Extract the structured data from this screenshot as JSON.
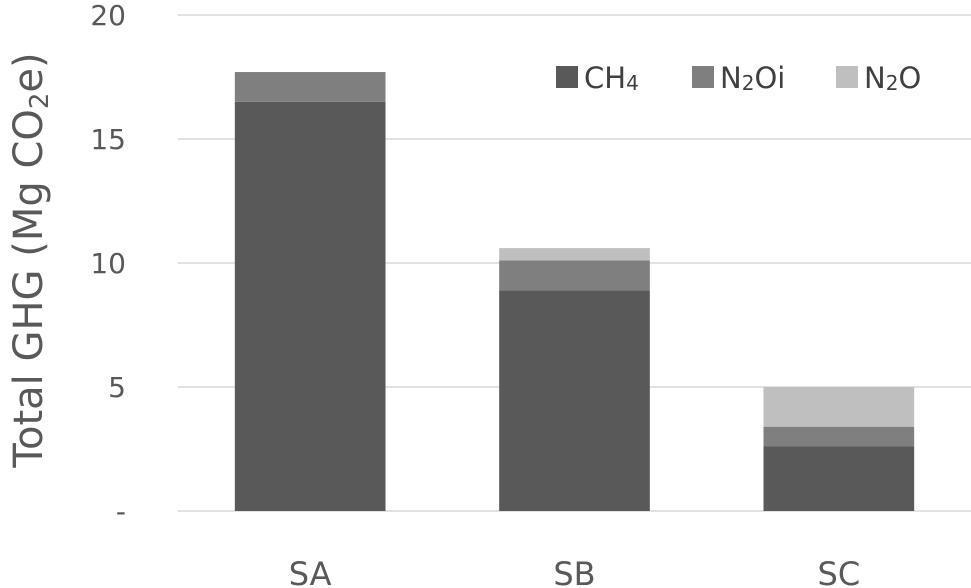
{
  "chart_data": {
    "type": "bar",
    "stacked": true,
    "categories": [
      "SA",
      "SB",
      "SC"
    ],
    "series": [
      {
        "name": "CH4",
        "legend_main": "CH",
        "legend_sub": "4",
        "color": "#595959",
        "values": [
          16.5,
          8.9,
          2.6
        ]
      },
      {
        "name": "N2Oi",
        "legend_main": "N",
        "legend_sub": "2",
        "legend_tail": "Oi",
        "color": "#7f7f7f",
        "values": [
          1.2,
          1.2,
          0.8
        ]
      },
      {
        "name": "N2O",
        "legend_main": "N",
        "legend_sub": "2",
        "legend_tail": "O",
        "color": "#bfbfbf",
        "values": [
          0.0,
          0.5,
          1.6
        ]
      }
    ],
    "ylabel": "Total GHG (Mg CO2e)",
    "ylabel_parts": {
      "before": "Total GHG (Mg CO",
      "sub": "2",
      "after": "e)"
    },
    "ylim": [
      0,
      20
    ],
    "yticks": [
      0,
      5,
      10,
      15,
      20
    ],
    "ytick_labels": [
      "-",
      "5",
      "10",
      "15",
      "20"
    ],
    "grid": true,
    "legend_position": "top-right"
  }
}
